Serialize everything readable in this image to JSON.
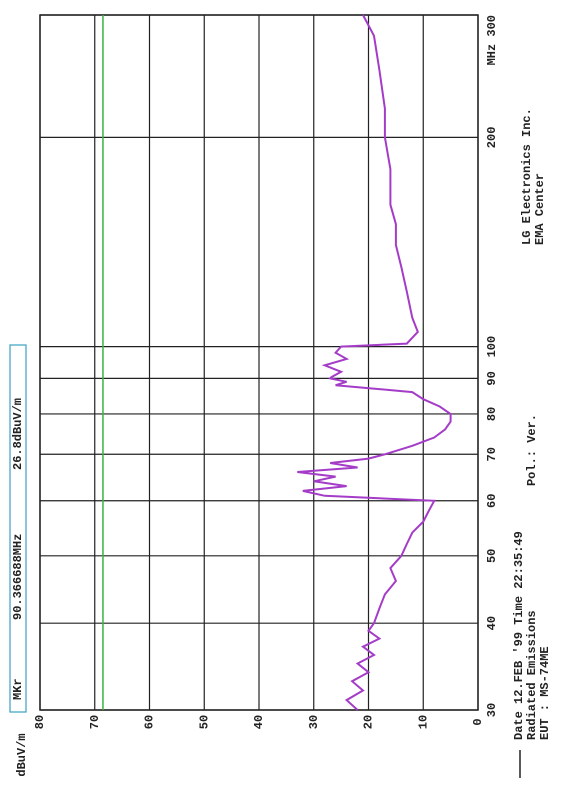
{
  "chart_data": {
    "type": "line",
    "y_label": "dBuV/m",
    "x": [
      30,
      31,
      32,
      33,
      34,
      35,
      36,
      37,
      38,
      39,
      40,
      42,
      44,
      46,
      48,
      50,
      52,
      54,
      56,
      58,
      60,
      61,
      62,
      63,
      64,
      65,
      66,
      67,
      68,
      69,
      70,
      72,
      74,
      76,
      78,
      80,
      82,
      84,
      86,
      88,
      89,
      90,
      90.37,
      92,
      94,
      96,
      98,
      100,
      101,
      105,
      110,
      120,
      130,
      140,
      150,
      160,
      180,
      200,
      220,
      250,
      280,
      300
    ],
    "series": [
      {
        "color": "#a43cc8",
        "values": [
          22,
          24,
          21,
          23,
          20,
          22,
          19,
          21,
          18,
          20,
          19,
          18,
          17,
          15,
          16,
          14,
          13,
          12,
          10,
          9,
          8,
          28,
          32,
          24,
          30,
          26,
          33,
          22,
          27,
          20,
          17,
          12,
          8,
          6,
          5,
          5,
          7,
          10,
          12,
          26,
          24,
          27,
          26.8,
          25,
          28,
          24,
          26,
          25,
          13,
          11,
          12,
          13,
          14,
          15,
          15,
          16,
          16,
          17,
          17,
          18,
          19,
          21
        ]
      }
    ],
    "xlim": [
      30,
      300
    ],
    "x_log": true,
    "xticks": [
      30,
      40,
      50,
      60,
      70,
      80,
      90,
      100,
      200,
      {
        "value": 300,
        "label": "MHz 300"
      }
    ],
    "ylim": [
      0,
      80
    ],
    "yticks": [
      0,
      10,
      20,
      30,
      40,
      50,
      60,
      70,
      80
    ],
    "limit": {
      "value": 68.5,
      "color": "#3cb43c"
    },
    "marker": {
      "name": "MKr",
      "freq": "90.366688MHz",
      "level": "26.8dBuV/m"
    },
    "info": {
      "date": "Date 12.FEB '99 Time 22:35:49",
      "test": "Radiated Emissions",
      "eut": "EUT : MS-74ME",
      "pol": "Pol.: Ver.",
      "company": "LG Electronics Inc.",
      "center": "EMA Center"
    },
    "grid": true
  }
}
